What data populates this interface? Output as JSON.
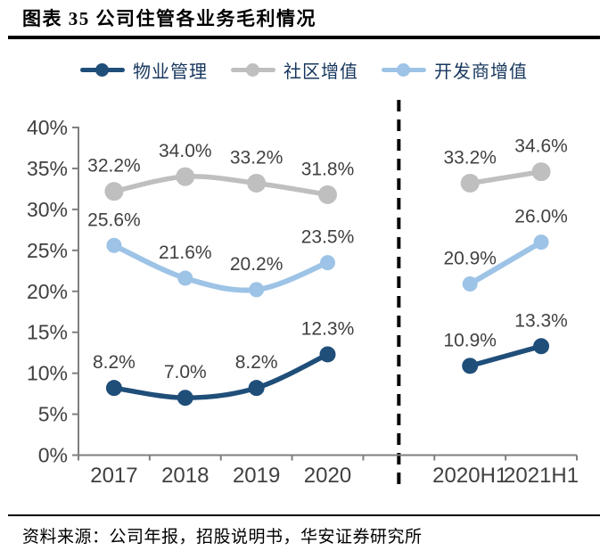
{
  "header": {
    "title": "图表 35 公司住管各业务毛利情况"
  },
  "footer": {
    "source": "资料来源：公司年报，招股说明书，华安证券研究所"
  },
  "colors": {
    "background": "#FFFFFF",
    "title_text": "#000000",
    "rule": "#000000",
    "axis": "#7F7F7F",
    "tick_label": "#404040",
    "data_label": "#404040",
    "legend_text": "#17375E",
    "separator": "#000000",
    "series_property_mgmt": "#1F4E79",
    "series_community_vas": "#BFBFBF",
    "series_developer_vas": "#9DC3E6"
  },
  "chart_data": {
    "type": "line",
    "title": "图表 35 公司住管各业务毛利情况",
    "categories": [
      "2017",
      "2018",
      "2019",
      "2020",
      "2020H1",
      "2021H1"
    ],
    "category_slots": [
      0,
      1,
      2,
      3,
      5,
      6
    ],
    "slot_count": 7,
    "separator": {
      "style": "dashed-vertical",
      "slot": 4,
      "between": [
        "2020",
        "2020H1"
      ]
    },
    "ylim": [
      0,
      40
    ],
    "ytick_step": 5,
    "ytick_suffix": "%",
    "grid": false,
    "legend_position": "top",
    "data_label_format": "0.0%",
    "series": [
      {
        "name": "物业管理",
        "color": "#1F4E79",
        "values": [
          8.2,
          7.0,
          8.2,
          12.3,
          10.9,
          13.3
        ]
      },
      {
        "name": "社区增值",
        "color": "#BFBFBF",
        "values": [
          32.2,
          34.0,
          33.2,
          31.8,
          33.2,
          34.6
        ]
      },
      {
        "name": "开发商增值",
        "color": "#9DC3E6",
        "values": [
          25.6,
          21.6,
          20.2,
          23.5,
          20.9,
          26.0
        ]
      }
    ]
  }
}
